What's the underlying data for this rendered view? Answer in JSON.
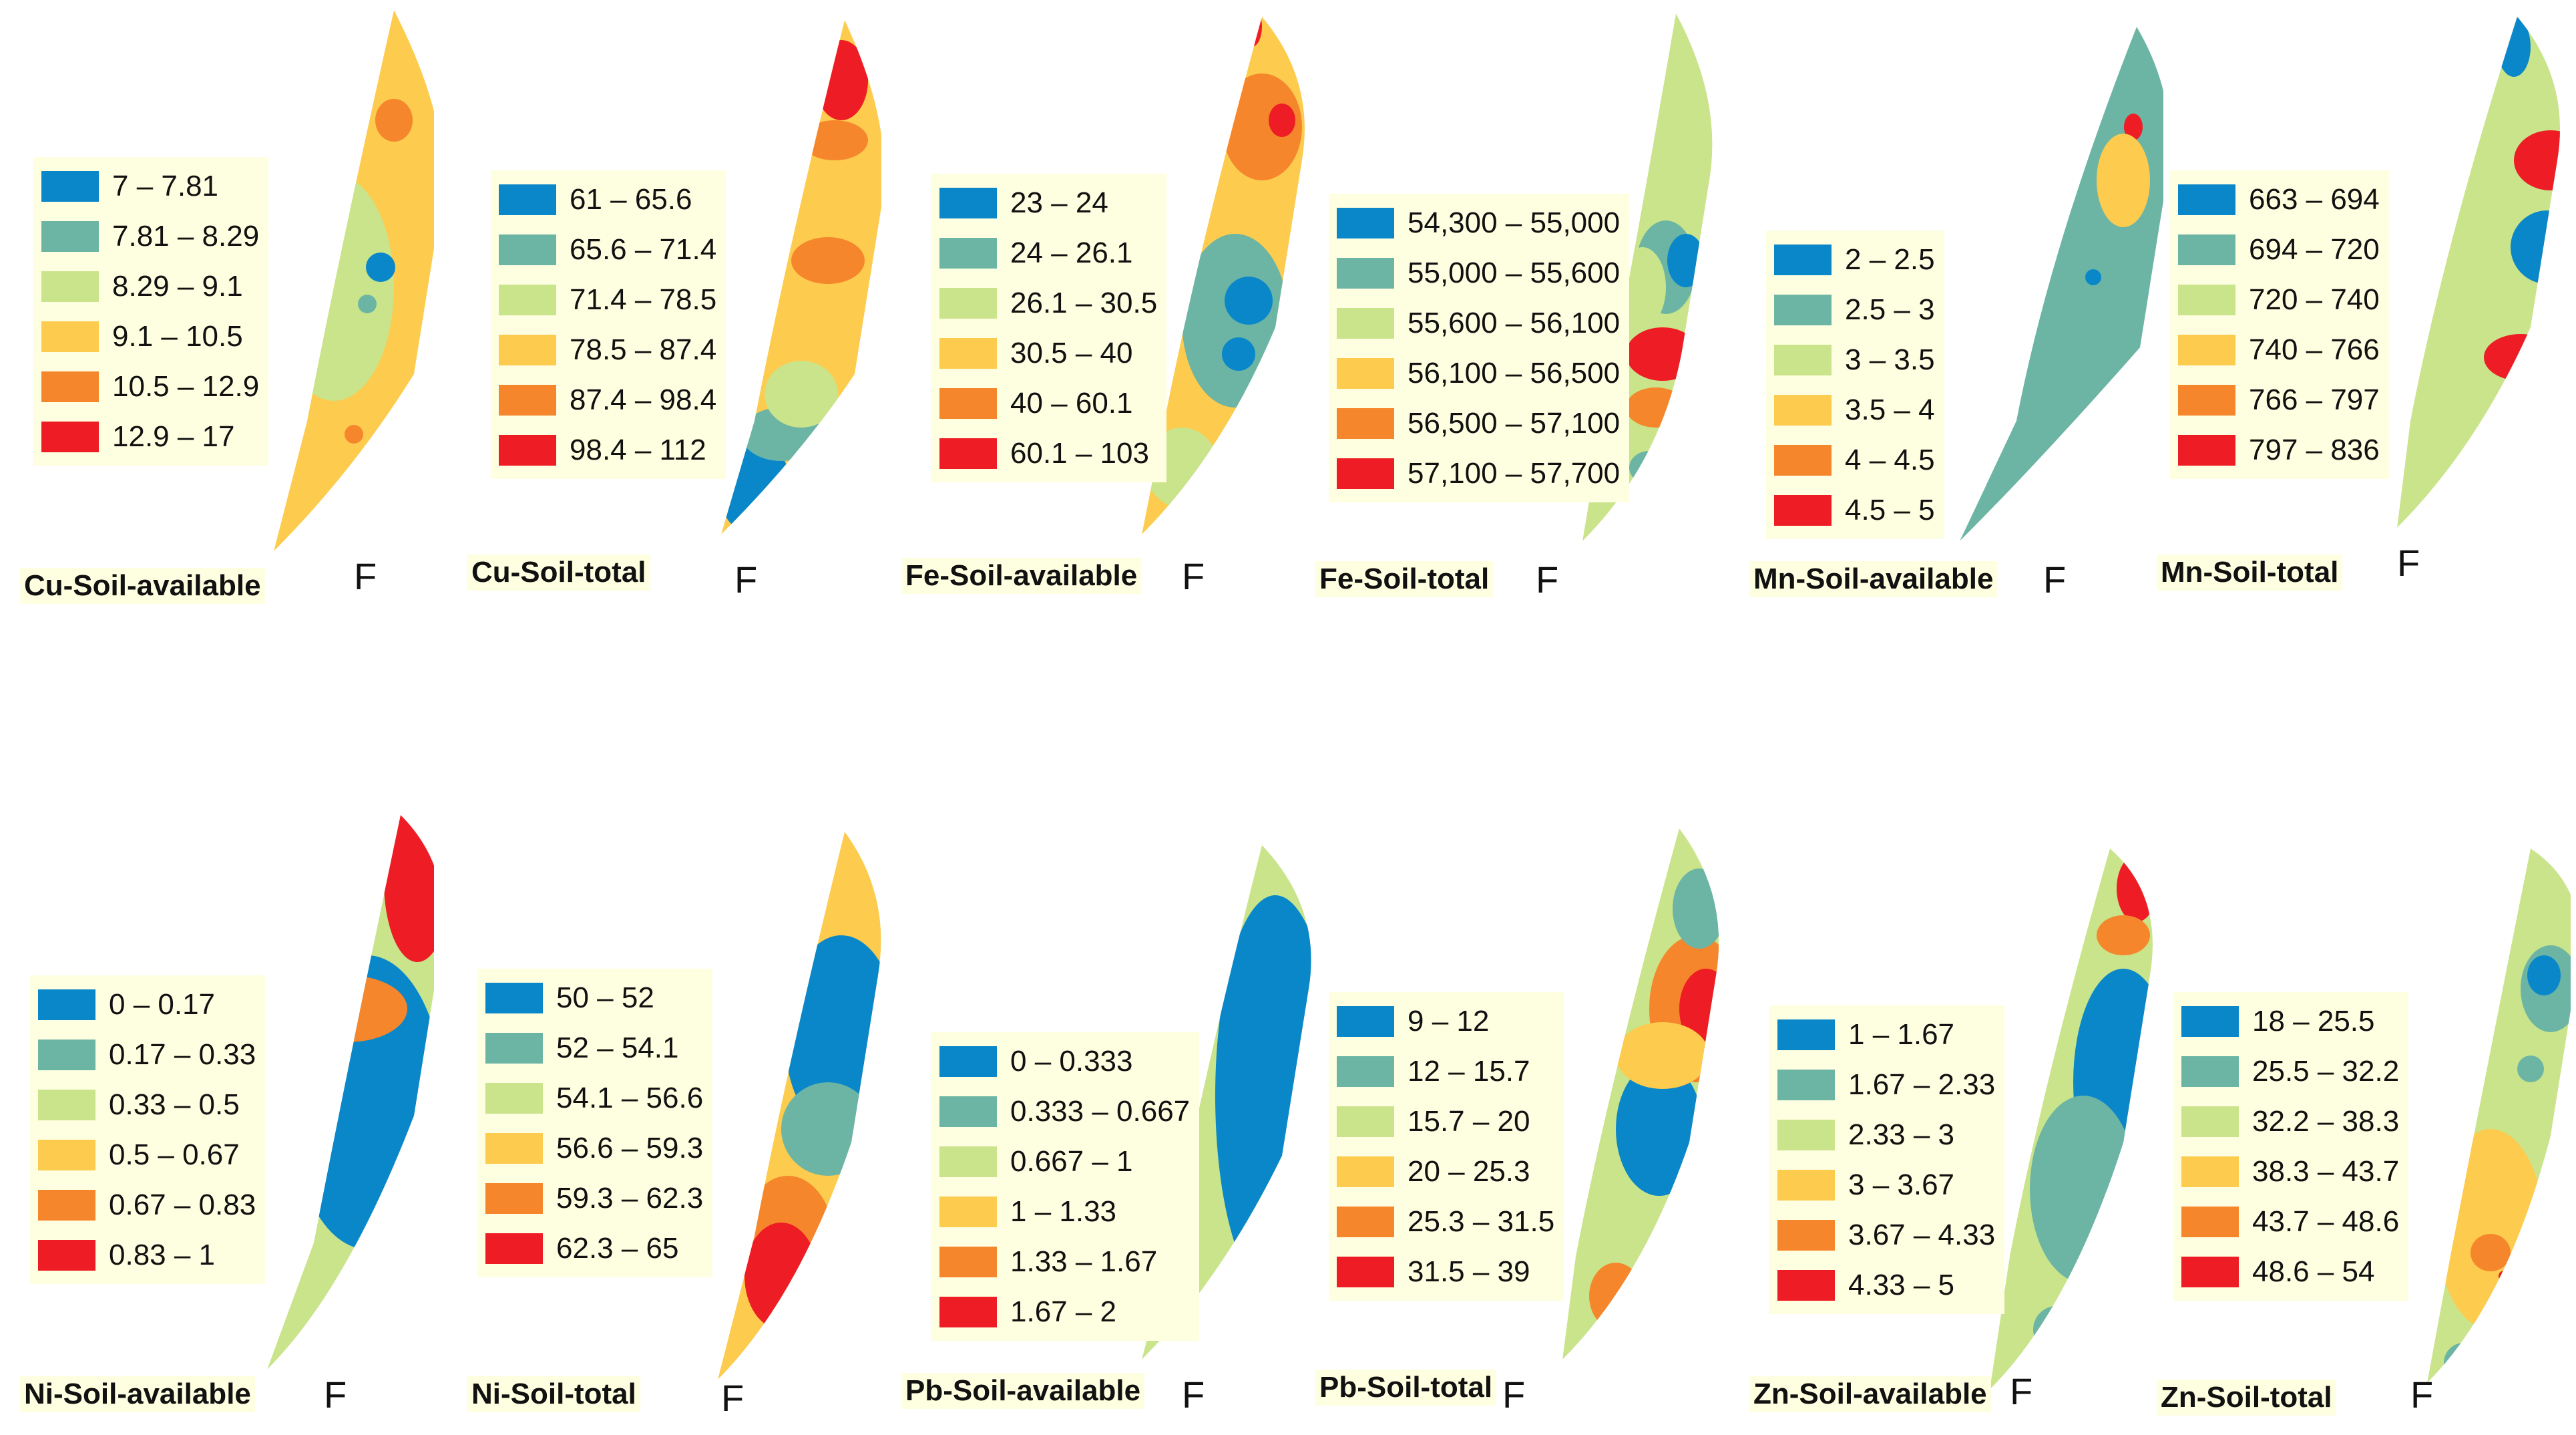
{
  "north_label": "F",
  "colors": [
    "#0a87c9",
    "#6cb5a4",
    "#c9e48a",
    "#fdcb4e",
    "#f6862c",
    "#ee1c24"
  ],
  "panels": [
    {
      "title": "Cu-Soil-available",
      "legend": [
        "7 – 7.81",
        "7.81 – 8.29",
        "8.29 – 9.1",
        "9.1 – 10.5",
        "10.5 – 12.9",
        "12.9 – 17"
      ]
    },
    {
      "title": "Cu-Soil-total",
      "legend": [
        "61 – 65.6",
        "65.6 – 71.4",
        "71.4 – 78.5",
        "78.5 – 87.4",
        "87.4 – 98.4",
        "98.4 – 112"
      ]
    },
    {
      "title": "Fe-Soil-available",
      "legend": [
        "23 – 24",
        "24 – 26.1",
        "26.1 – 30.5",
        "30.5 – 40",
        "40 – 60.1",
        "60.1 – 103"
      ]
    },
    {
      "title": "Fe-Soil-total",
      "legend": [
        "54,300 – 55,000",
        "55,000 – 55,600",
        "55,600 – 56,100",
        "56,100 – 56,500",
        "56,500 – 57,100",
        "57,100 – 57,700"
      ]
    },
    {
      "title": "Mn-Soil-available",
      "legend": [
        "2 – 2.5",
        "2.5 – 3",
        "3 – 3.5",
        "3.5 – 4",
        "4 – 4.5",
        "4.5 – 5"
      ]
    },
    {
      "title": "Mn-Soil-total",
      "legend": [
        "663 – 694",
        "694 – 720",
        "720 – 740",
        "740 – 766",
        "766 – 797",
        "797 – 836"
      ]
    },
    {
      "title": "Ni-Soil-available",
      "legend": [
        "0 – 0.17",
        "0.17 – 0.33",
        "0.33 – 0.5",
        "0.5 – 0.67",
        "0.67 – 0.83",
        "0.83 – 1"
      ]
    },
    {
      "title": "Ni-Soil-total",
      "legend": [
        "50 – 52",
        "52 – 54.1",
        "54.1 – 56.6",
        "56.6 – 59.3",
        "59.3 – 62.3",
        "62.3 – 65"
      ]
    },
    {
      "title": "Pb-Soil-available",
      "legend": [
        "0 – 0.333",
        "0.333 – 0.667",
        "0.667 – 1",
        "1 – 1.33",
        "1.33 – 1.67",
        "1.67 – 2"
      ]
    },
    {
      "title": "Pb-Soil-total",
      "legend": [
        "9 – 12",
        "12 – 15.7",
        "15.7 – 20",
        "20 – 25.3",
        "25.3 – 31.5",
        "31.5 – 39"
      ]
    },
    {
      "title": "Zn-Soil-available",
      "legend": [
        "1 – 1.67",
        "1.67 – 2.33",
        "2.33 – 3",
        "3 – 3.67",
        "3.67 – 4.33",
        "4.33 – 5"
      ]
    },
    {
      "title": "Zn-Soil-total",
      "legend": [
        "18 – 25.5",
        "25.5 – 32.2",
        "32.2 – 38.3",
        "38.3 – 43.7",
        "43.7 – 48.6",
        "48.6 – 54"
      ]
    }
  ]
}
